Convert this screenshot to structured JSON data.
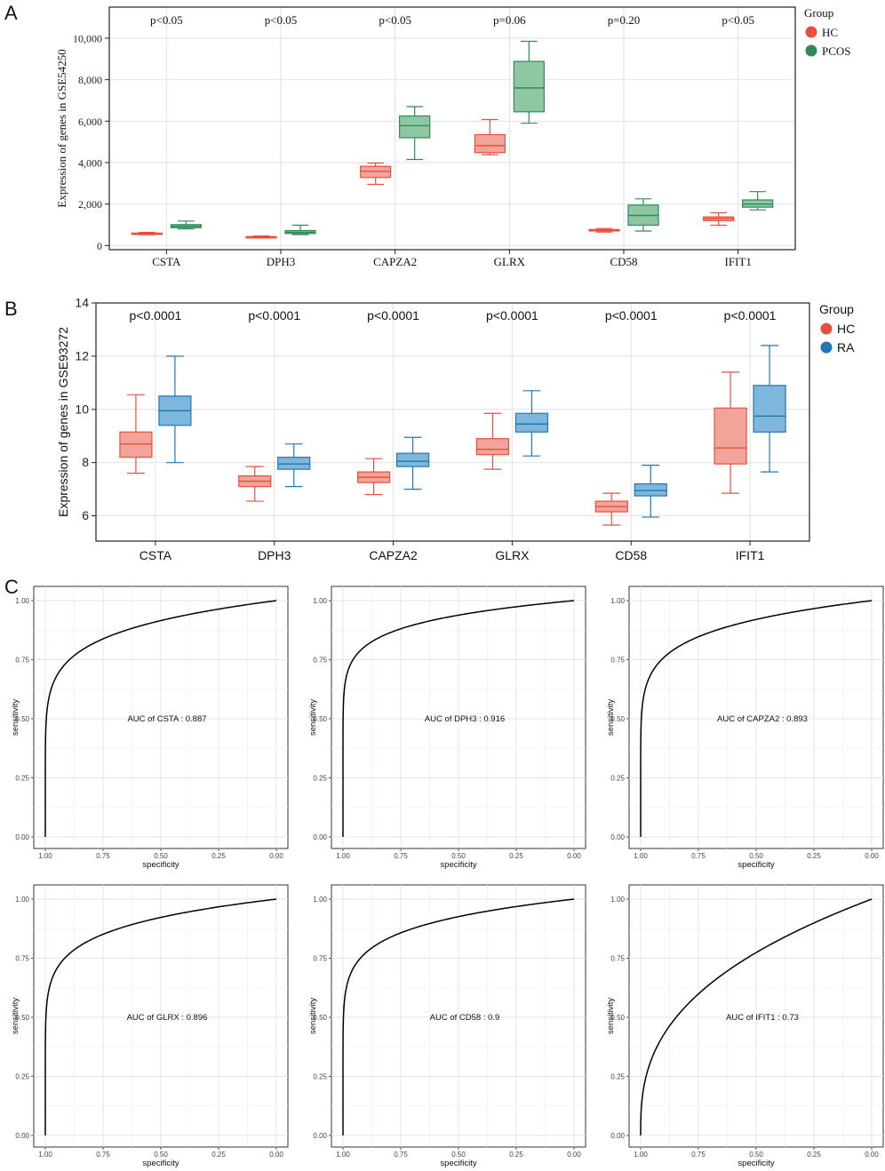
{
  "panels": {
    "A": {
      "label": "A",
      "chart_data": {
        "type": "box",
        "title": "",
        "ylabel": "Expression of genes in GSE54250",
        "xlabel": "",
        "ylim": [
          -200,
          11500
        ],
        "yticks": [
          0,
          2000,
          4000,
          6000,
          8000,
          10000
        ],
        "ytick_labels": [
          "0",
          "2,000",
          "4,000",
          "6,000",
          "8,000",
          "10,000"
        ],
        "categories": [
          "CSTA",
          "DPH3",
          "CAPZA2",
          "GLRX",
          "CD58",
          "IFIT1"
        ],
        "pvalues": [
          "p<0.05",
          "p<0.05",
          "p<0.05",
          "p=0.06",
          "p=0.20",
          "p<0.05"
        ],
        "legend": {
          "title": "Group",
          "position": "right"
        },
        "series": [
          {
            "name": "HC",
            "color": "#e8503c",
            "fill": "#f2a49a",
            "boxes": [
              {
                "min": 520,
                "q1": 550,
                "median": 575,
                "q3": 600,
                "max": 630
              },
              {
                "min": 360,
                "q1": 390,
                "median": 410,
                "q3": 430,
                "max": 460
              },
              {
                "min": 2950,
                "q1": 3280,
                "median": 3580,
                "q3": 3820,
                "max": 3980
              },
              {
                "min": 4380,
                "q1": 4480,
                "median": 4820,
                "q3": 5350,
                "max": 6080
              },
              {
                "min": 650,
                "q1": 700,
                "median": 730,
                "q3": 770,
                "max": 820
              },
              {
                "min": 980,
                "q1": 1200,
                "median": 1300,
                "q3": 1380,
                "max": 1580
              }
            ]
          },
          {
            "name": "PCOS",
            "color": "#2e8b57",
            "fill": "#8fc7a2",
            "boxes": [
              {
                "min": 800,
                "q1": 860,
                "median": 930,
                "q3": 1010,
                "max": 1180
              },
              {
                "min": 530,
                "q1": 580,
                "median": 640,
                "q3": 720,
                "max": 980
              },
              {
                "min": 4150,
                "q1": 5200,
                "median": 5780,
                "q3": 6250,
                "max": 6700
              },
              {
                "min": 5900,
                "q1": 6450,
                "median": 7600,
                "q3": 8880,
                "max": 9850
              },
              {
                "min": 700,
                "q1": 980,
                "median": 1450,
                "q3": 1950,
                "max": 2250
              },
              {
                "min": 1720,
                "q1": 1850,
                "median": 2000,
                "q3": 2200,
                "max": 2600
              }
            ]
          }
        ]
      }
    },
    "B": {
      "label": "B",
      "chart_data": {
        "type": "box",
        "title": "",
        "ylabel": "Expression of genes in GSE93272",
        "xlabel": "",
        "ylim": [
          5.05,
          14
        ],
        "yticks": [
          6,
          8,
          10,
          12,
          14
        ],
        "ytick_labels": [
          "6",
          "8",
          "10",
          "12",
          "14"
        ],
        "categories": [
          "CSTA",
          "DPH3",
          "CAPZA2",
          "GLRX",
          "CD58",
          "IFIT1"
        ],
        "pvalues": [
          "p<0.0001",
          "p<0.0001",
          "p<0.0001",
          "p<0.0001",
          "p<0.0001",
          "p<0.0001"
        ],
        "legend": {
          "title": "Group",
          "position": "right"
        },
        "series": [
          {
            "name": "HC",
            "color": "#e8503c",
            "fill": "#f2a49a",
            "boxes": [
              {
                "min": 7.6,
                "q1": 8.2,
                "median": 8.7,
                "q3": 9.15,
                "max": 10.55
              },
              {
                "min": 6.55,
                "q1": 7.1,
                "median": 7.3,
                "q3": 7.5,
                "max": 7.85
              },
              {
                "min": 6.8,
                "q1": 7.25,
                "median": 7.45,
                "q3": 7.65,
                "max": 8.15
              },
              {
                "min": 7.75,
                "q1": 8.3,
                "median": 8.5,
                "q3": 8.9,
                "max": 9.85
              },
              {
                "min": 5.65,
                "q1": 6.15,
                "median": 6.35,
                "q3": 6.55,
                "max": 6.85
              },
              {
                "min": 6.85,
                "q1": 7.95,
                "median": 8.55,
                "q3": 10.05,
                "max": 11.4
              }
            ]
          },
          {
            "name": "RA",
            "color": "#1f78b4",
            "fill": "#7fb6dc",
            "boxes": [
              {
                "min": 8.0,
                "q1": 9.4,
                "median": 9.95,
                "q3": 10.5,
                "max": 12.0
              },
              {
                "min": 7.1,
                "q1": 7.75,
                "median": 7.95,
                "q3": 8.2,
                "max": 8.7
              },
              {
                "min": 7.0,
                "q1": 7.85,
                "median": 8.05,
                "q3": 8.35,
                "max": 8.95
              },
              {
                "min": 8.25,
                "q1": 9.15,
                "median": 9.45,
                "q3": 9.85,
                "max": 10.7
              },
              {
                "min": 5.95,
                "q1": 6.75,
                "median": 6.95,
                "q3": 7.2,
                "max": 7.9
              },
              {
                "min": 7.65,
                "q1": 9.15,
                "median": 9.75,
                "q3": 10.9,
                "max": 12.4
              }
            ]
          }
        ]
      }
    },
    "C": {
      "label": "C",
      "chart_data": [
        {
          "type": "line",
          "gene": "CSTA",
          "auc": 0.887,
          "annotation": "AUC of CSTA : 0.887",
          "xlabel": "specificity",
          "ylabel": "sensitivity",
          "xlim": [
            1.0,
            0.0
          ],
          "ylim": [
            0,
            1
          ],
          "xtick_labels": [
            "1.00",
            "0.75",
            "0.50",
            "0.25",
            "0.00"
          ],
          "ytick_labels": [
            "0.00",
            "0.25",
            "0.50",
            "0.75",
            "1.00"
          ]
        },
        {
          "type": "line",
          "gene": "DPH3",
          "auc": 0.916,
          "annotation": "AUC of DPH3 : 0.916",
          "xlabel": "specificity",
          "ylabel": "sensitivity",
          "xlim": [
            1.0,
            0.0
          ],
          "ylim": [
            0,
            1
          ],
          "xtick_labels": [
            "1.00",
            "0.75",
            "0.50",
            "0.25",
            "0.00"
          ],
          "ytick_labels": [
            "0.00",
            "0.25",
            "0.50",
            "0.75",
            "1.00"
          ]
        },
        {
          "type": "line",
          "gene": "CAPZA2",
          "auc": 0.893,
          "annotation": "AUC of CAPZA2 : 0.893",
          "xlabel": "specificity",
          "ylabel": "sensitivity",
          "xlim": [
            1.0,
            0.0
          ],
          "ylim": [
            0,
            1
          ],
          "xtick_labels": [
            "1.00",
            "0.75",
            "0.50",
            "0.25",
            "0.00"
          ],
          "ytick_labels": [
            "0.00",
            "0.25",
            "0.50",
            "0.75",
            "1.00"
          ]
        },
        {
          "type": "line",
          "gene": "GLRX",
          "auc": 0.896,
          "annotation": "AUC of GLRX : 0.896",
          "xlabel": "specificity",
          "ylabel": "sensitivity",
          "xlim": [
            1.0,
            0.0
          ],
          "ylim": [
            0,
            1
          ],
          "xtick_labels": [
            "1.00",
            "0.75",
            "0.50",
            "0.25",
            "0.00"
          ],
          "ytick_labels": [
            "0.00",
            "0.25",
            "0.50",
            "0.75",
            "1.00"
          ]
        },
        {
          "type": "line",
          "gene": "CD58",
          "auc": 0.9,
          "annotation": "AUC of CD58 : 0.9",
          "xlabel": "specificity",
          "ylabel": "sensitivity",
          "xlim": [
            1.0,
            0.0
          ],
          "ylim": [
            0,
            1
          ],
          "xtick_labels": [
            "1.00",
            "0.75",
            "0.50",
            "0.25",
            "0.00"
          ],
          "ytick_labels": [
            "0.00",
            "0.25",
            "0.50",
            "0.75",
            "1.00"
          ]
        },
        {
          "type": "line",
          "gene": "IFIT1",
          "auc": 0.73,
          "annotation": "AUC of IFIT1 : 0.73",
          "xlabel": "specificity",
          "ylabel": "sensitivity",
          "xlim": [
            1.0,
            0.0
          ],
          "ylim": [
            0,
            1
          ],
          "xtick_labels": [
            "1.00",
            "0.75",
            "0.50",
            "0.25",
            "0.00"
          ],
          "ytick_labels": [
            "0.00",
            "0.25",
            "0.50",
            "0.75",
            "1.00"
          ]
        }
      ]
    }
  }
}
